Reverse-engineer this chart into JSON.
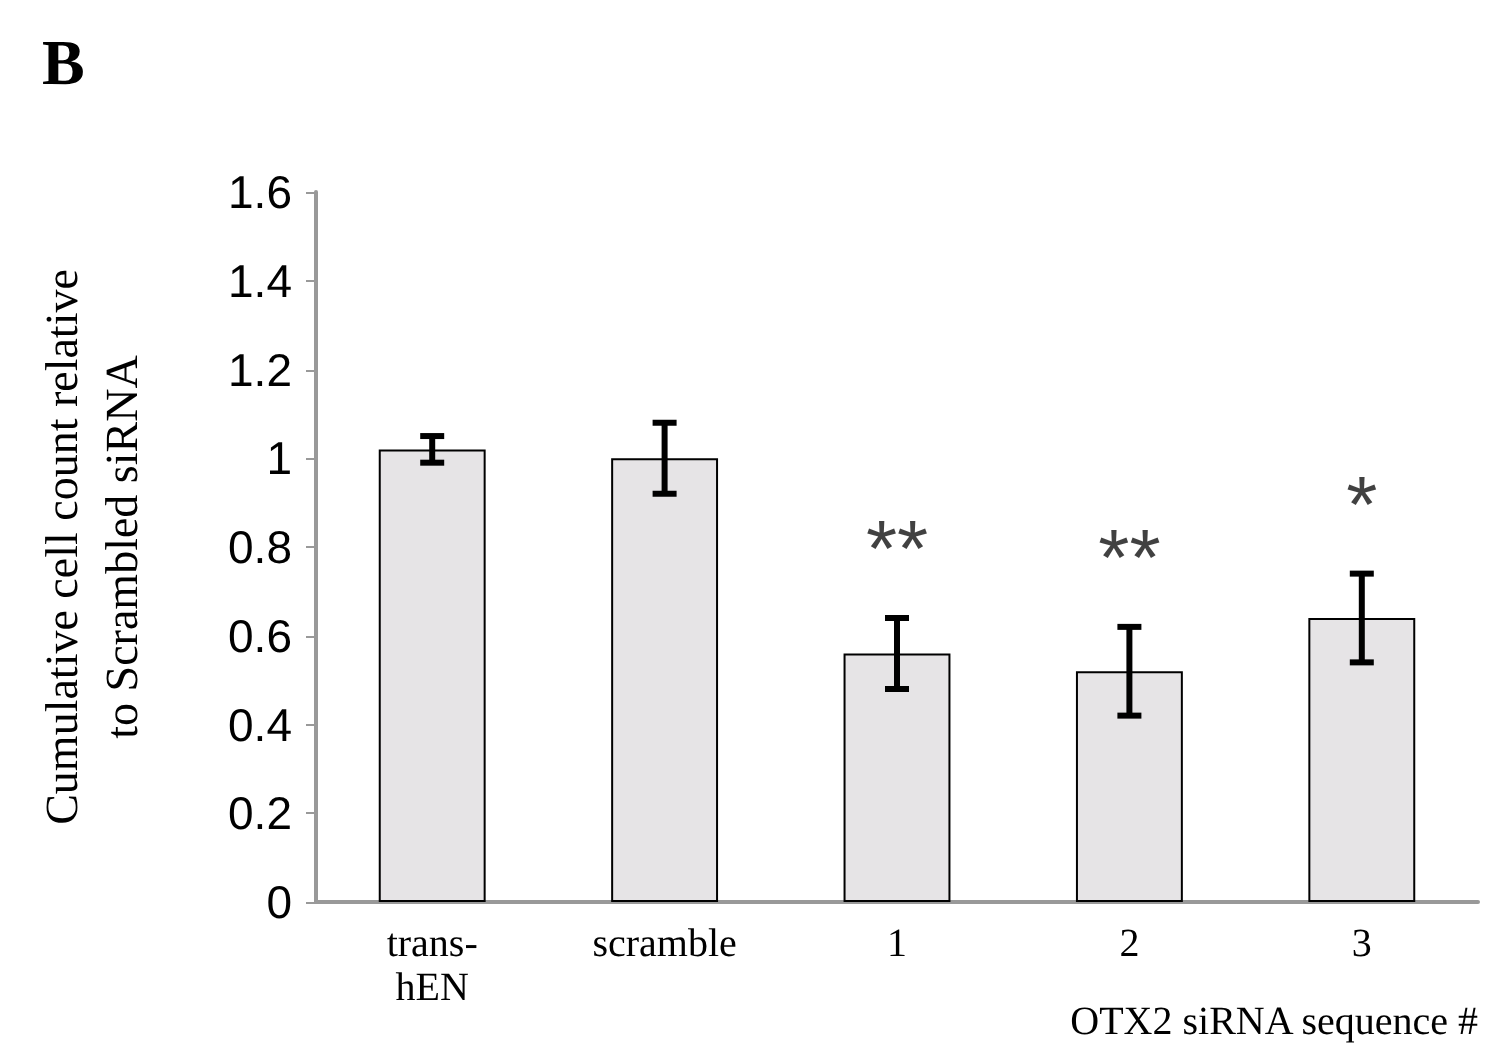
{
  "chart_data": {
    "type": "bar",
    "title": "B",
    "ylabel": "Cumulative cell count relative\nto Scrambled siRNA",
    "xlabel": "OTX2 siRNA sequence #",
    "categories": [
      "trans-\nhEN",
      "scramble",
      "1",
      "2",
      "3"
    ],
    "values": [
      1.02,
      1.0,
      0.56,
      0.52,
      0.64
    ],
    "errors": [
      0.03,
      0.08,
      0.08,
      0.1,
      0.1
    ],
    "color": "#e6e4e6",
    "ylim": [
      0,
      1.6
    ],
    "yticks": [
      0,
      0.2,
      0.4,
      0.6,
      0.8,
      1,
      1.2,
      1.4,
      1.6
    ],
    "grid": false,
    "annotations": [
      "**",
      "**",
      "*"
    ]
  }
}
